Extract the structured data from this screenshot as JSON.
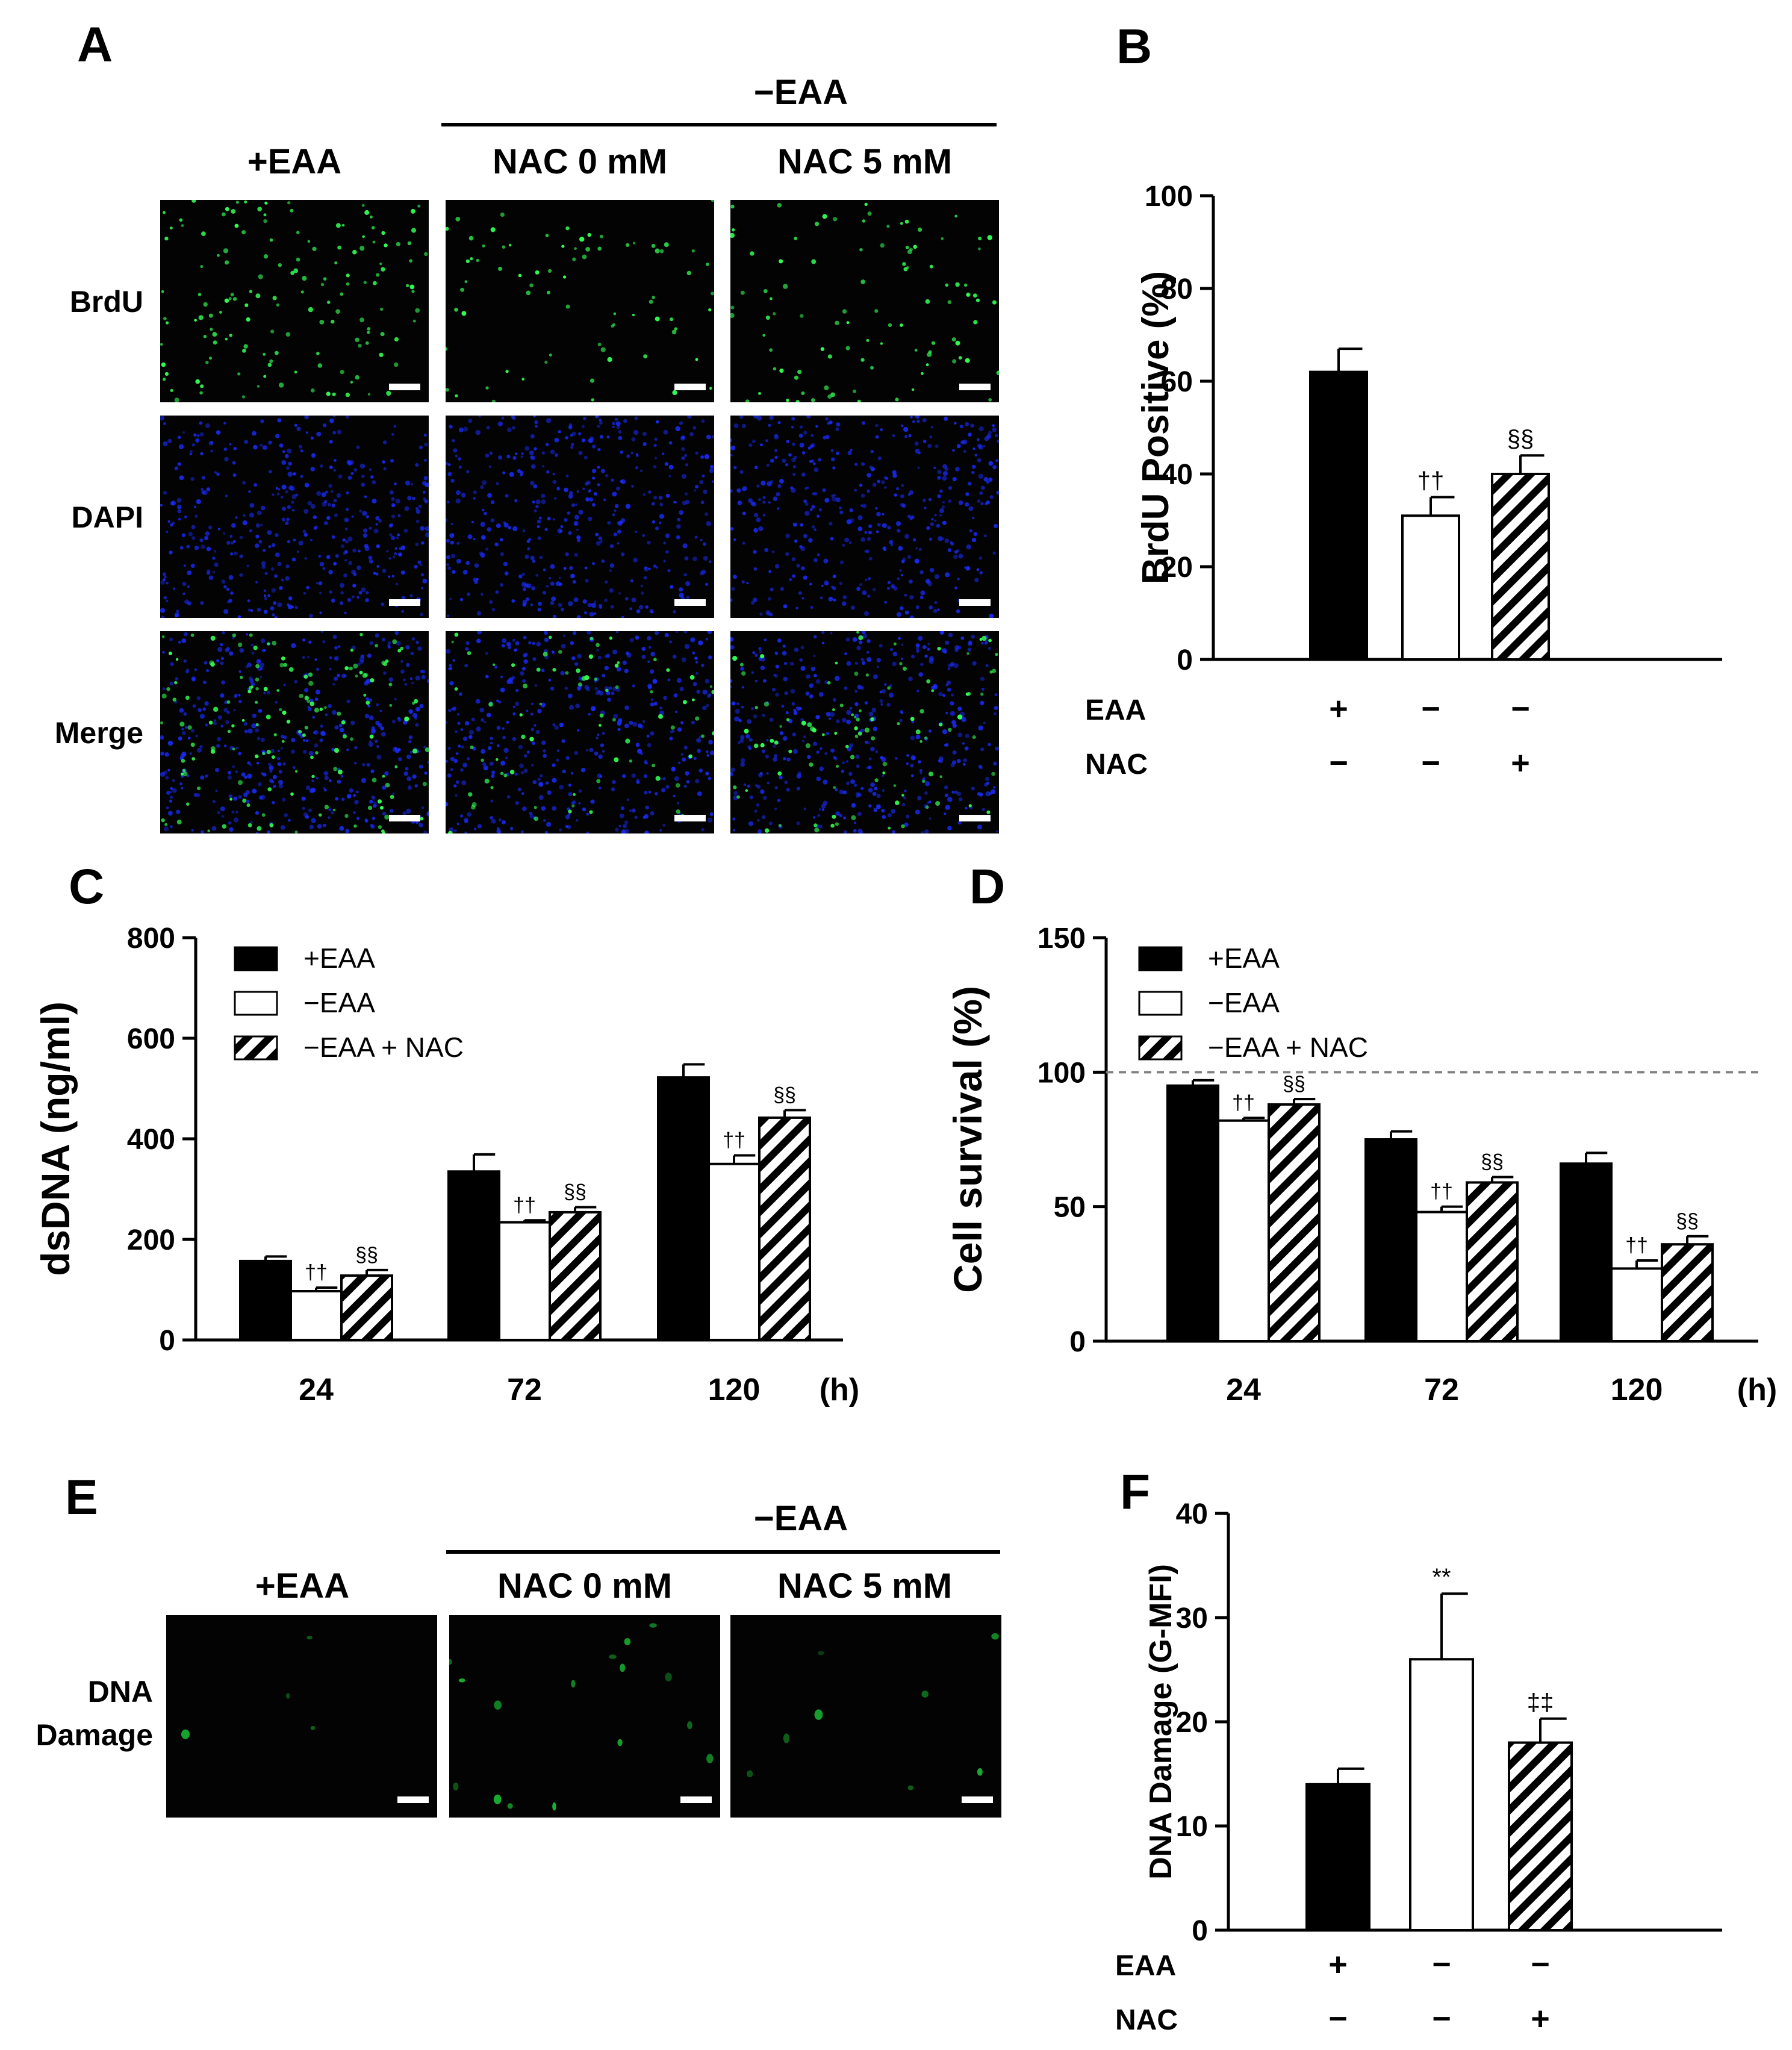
{
  "panels": {
    "a": {
      "letter": "A",
      "group_label": "−EAA",
      "columns": [
        "+EAA",
        "NAC 0 mM",
        "NAC 5 mM"
      ],
      "rows": [
        "BrdU",
        "DAPI",
        "Merge"
      ]
    },
    "e": {
      "letter": "E",
      "group_label": "−EAA",
      "columns": [
        "+EAA",
        "NAC 0 mM",
        "NAC 5 mM"
      ],
      "row_label_line1": "DNA",
      "row_label_line2": "Damage"
    }
  },
  "colors": {
    "black_bar": "#000000",
    "brdu": "#33ff55",
    "dapi": "#1a2cff",
    "dna_damage": "#1dd43a",
    "dashed_line": "#808080"
  },
  "chart_data": [
    {
      "id": "B",
      "letter": "B",
      "type": "bar",
      "ylabel": "BrdU Positive (%)",
      "ylim": [
        0,
        100
      ],
      "yticks": [
        0,
        20,
        40,
        60,
        80,
        100
      ],
      "categories": [
        "+EAA",
        "−EAA",
        "−EAA + NAC"
      ],
      "values": [
        62,
        31,
        40
      ],
      "errors": [
        5,
        4,
        4
      ],
      "annotations": [
        "",
        "††",
        "§§"
      ],
      "fills": [
        "solid",
        "open",
        "hatched"
      ],
      "condition_rows": [
        {
          "label": "EAA",
          "marks": [
            "+",
            "−",
            "−"
          ]
        },
        {
          "label": "NAC",
          "marks": [
            "−",
            "−",
            "+"
          ]
        }
      ]
    },
    {
      "id": "C",
      "letter": "C",
      "type": "bar",
      "ylabel": "dsDNA (ng/ml)",
      "ylim": [
        0,
        800
      ],
      "yticks": [
        0,
        200,
        400,
        600,
        800
      ],
      "categories": [
        "24",
        "72",
        "120"
      ],
      "x_unit": "(h)",
      "series": [
        {
          "name": "+EAA",
          "fill": "solid",
          "values": [
            157,
            335,
            522
          ],
          "errors": [
            9,
            34,
            26
          ],
          "annotations": [
            "",
            "",
            ""
          ]
        },
        {
          "name": "−EAA",
          "fill": "open",
          "values": [
            97,
            234,
            350
          ],
          "errors": [
            7,
            4,
            17
          ],
          "annotations": [
            "††",
            "††",
            "††"
          ]
        },
        {
          "name": "−EAA + NAC",
          "fill": "hatched",
          "values": [
            128,
            254,
            442
          ],
          "errors": [
            11,
            10,
            15
          ],
          "annotations": [
            "§§",
            "§§",
            "§§"
          ]
        }
      ],
      "legend": "top-left"
    },
    {
      "id": "D",
      "letter": "D",
      "type": "bar",
      "ylabel": "Cell survival (%)",
      "ylim": [
        0,
        150
      ],
      "yticks": [
        0,
        50,
        100,
        150
      ],
      "categories": [
        "24",
        "72",
        "120"
      ],
      "x_unit": "(h)",
      "reference_line": 100,
      "series": [
        {
          "name": "+EAA",
          "fill": "solid",
          "values": [
            95,
            75,
            66
          ],
          "errors": [
            2,
            3,
            4
          ],
          "annotations": [
            "",
            "",
            ""
          ]
        },
        {
          "name": "−EAA",
          "fill": "open",
          "values": [
            82,
            48,
            27
          ],
          "errors": [
            1,
            2,
            3
          ],
          "annotations": [
            "††",
            "††",
            "††"
          ]
        },
        {
          "name": "−EAA + NAC",
          "fill": "hatched",
          "values": [
            88,
            59,
            36
          ],
          "errors": [
            2,
            2,
            3
          ],
          "annotations": [
            "§§",
            "§§",
            "§§"
          ]
        }
      ],
      "legend": "top-left"
    },
    {
      "id": "F",
      "letter": "F",
      "type": "bar",
      "ylabel": "DNA Damage (G-MFI)",
      "ylim": [
        0,
        40
      ],
      "yticks": [
        0,
        10,
        20,
        30,
        40
      ],
      "categories": [
        "+EAA",
        "−EAA",
        "−EAA + NAC"
      ],
      "values": [
        14,
        26,
        18
      ],
      "errors": [
        1.5,
        6.3,
        2.3
      ],
      "annotations": [
        "",
        "**",
        "‡‡"
      ],
      "fills": [
        "solid",
        "open",
        "hatched"
      ],
      "condition_rows": [
        {
          "label": "EAA",
          "marks": [
            "+",
            "−",
            "−"
          ]
        },
        {
          "label": "NAC",
          "marks": [
            "−",
            "−",
            "+"
          ]
        }
      ]
    }
  ]
}
